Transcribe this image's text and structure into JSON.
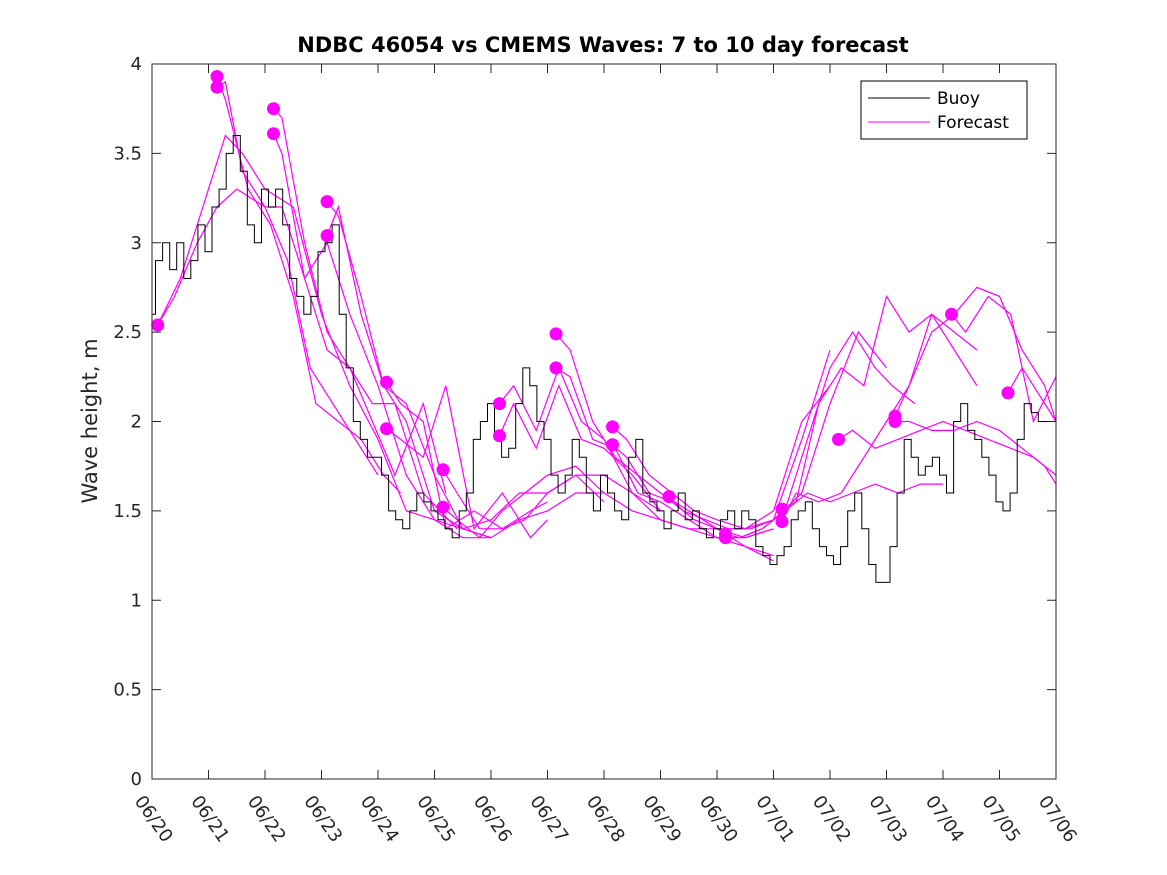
{
  "chart_data": {
    "type": "line",
    "title": "NDBC 46054 vs CMEMS Waves: 7 to 10 day forecast",
    "ylabel": "Wave height, m",
    "xlabel": "",
    "x_ticks": [
      "06/20",
      "06/21",
      "06/22",
      "06/23",
      "06/24",
      "06/25",
      "06/26",
      "06/27",
      "06/28",
      "06/29",
      "06/30",
      "07/01",
      "07/02",
      "07/03",
      "07/04",
      "07/05",
      "07/06"
    ],
    "y_ticks": [
      "0",
      "0.5",
      "1",
      "1.5",
      "2",
      "2.5",
      "3",
      "3.5",
      "4"
    ],
    "xlim": [
      0,
      16
    ],
    "ylim": [
      0,
      4
    ],
    "x_unit": "days since 06/20",
    "grid": false,
    "legend_position": "top-right",
    "colors": {
      "buoy": "#000000",
      "forecast": "#ff00ff"
    },
    "buoy": {
      "name": "Buoy",
      "x": [
        0,
        0.125,
        0.25,
        0.375,
        0.5,
        0.625,
        0.75,
        0.875,
        1,
        1.125,
        1.25,
        1.375,
        1.5,
        1.625,
        1.75,
        1.875,
        2,
        2.125,
        2.25,
        2.375,
        2.5,
        2.625,
        2.75,
        2.875,
        3,
        3.125,
        3.25,
        3.375,
        3.5,
        3.625,
        3.75,
        3.875,
        4,
        4.125,
        4.25,
        4.375,
        4.5,
        4.625,
        4.75,
        4.875,
        5,
        5.125,
        5.25,
        5.375,
        5.5,
        5.625,
        5.75,
        5.875,
        6,
        6.125,
        6.25,
        6.375,
        6.5,
        6.625,
        6.75,
        6.875,
        7,
        7.125,
        7.25,
        7.375,
        7.5,
        7.625,
        7.75,
        7.875,
        8,
        8.125,
        8.25,
        8.375,
        8.5,
        8.625,
        8.75,
        8.875,
        9,
        9.125,
        9.25,
        9.375,
        9.5,
        9.625,
        9.75,
        9.875,
        10,
        10.125,
        10.25,
        10.375,
        10.5,
        10.625,
        10.75,
        10.875,
        11,
        11.125,
        11.25,
        11.375,
        11.5,
        11.625,
        11.75,
        11.875,
        12,
        12.125,
        12.25,
        12.375,
        12.5,
        12.625,
        12.75,
        12.875,
        13,
        13.125,
        13.25,
        13.375,
        13.5,
        13.625,
        13.75,
        13.875,
        14,
        14.125,
        14.25,
        14.375,
        14.5,
        14.625,
        14.75,
        14.875,
        15,
        15.125,
        15.25,
        15.375,
        15.5,
        15.625,
        15.75,
        15.875,
        16
      ],
      "y": [
        2.6,
        2.9,
        3.0,
        2.85,
        3.0,
        2.8,
        2.9,
        3.1,
        2.95,
        3.2,
        3.3,
        3.5,
        3.6,
        3.4,
        3.1,
        3.0,
        3.3,
        3.2,
        3.3,
        3.1,
        2.8,
        2.7,
        2.6,
        2.7,
        2.95,
        3.0,
        3.1,
        2.6,
        2.3,
        2.0,
        1.9,
        1.8,
        1.8,
        1.7,
        1.5,
        1.45,
        1.4,
        1.5,
        1.6,
        1.55,
        1.5,
        1.45,
        1.4,
        1.35,
        1.5,
        1.6,
        1.9,
        2.0,
        2.1,
        1.9,
        1.8,
        1.85,
        2.1,
        2.3,
        2.2,
        2.0,
        1.9,
        1.7,
        1.6,
        1.7,
        1.9,
        1.8,
        1.6,
        1.5,
        1.7,
        1.6,
        1.5,
        1.45,
        1.8,
        1.9,
        1.6,
        1.55,
        1.5,
        1.4,
        1.5,
        1.6,
        1.45,
        1.5,
        1.4,
        1.35,
        1.4,
        1.45,
        1.5,
        1.4,
        1.5,
        1.45,
        1.3,
        1.25,
        1.2,
        1.25,
        1.3,
        1.45,
        1.5,
        1.55,
        1.4,
        1.3,
        1.25,
        1.2,
        1.3,
        1.5,
        1.6,
        1.4,
        1.2,
        1.1,
        1.1,
        1.3,
        1.6,
        1.9,
        1.8,
        1.7,
        1.75,
        1.8,
        1.7,
        1.6,
        2.0,
        2.1,
        1.95,
        1.9,
        1.8,
        1.7,
        1.55,
        1.5,
        1.6,
        1.9,
        2.1,
        2.05,
        2.0,
        2.0,
        2.0
      ]
    },
    "forecast": {
      "name": "Forecast",
      "series": [
        {
          "x": [
            0.1,
            0.4,
            0.8,
            1.15,
            1.5,
            2.0,
            2.3,
            2.7,
            3.1,
            3.5,
            4.0,
            4.5,
            5.0,
            5.5,
            6.0,
            6.5,
            7.0,
            7.5,
            8.0,
            8.5,
            9.0,
            9.5,
            10.0,
            10.5,
            11.0
          ],
          "y": [
            2.54,
            2.7,
            3.0,
            3.2,
            3.3,
            3.2,
            3.2,
            2.8,
            3.0,
            2.6,
            2.2,
            1.7,
            1.45,
            1.4,
            1.45,
            1.6,
            1.6,
            1.7,
            1.7,
            1.6,
            1.45,
            1.4,
            1.35,
            1.35,
            1.4
          ]
        },
        {
          "x": [
            0.1,
            0.5,
            1.0,
            1.3,
            1.6,
            2.0,
            2.5,
            3.0,
            3.5,
            4.0,
            4.5,
            5.0,
            5.5,
            6.0,
            6.5,
            7.0,
            7.5,
            8.0,
            8.5,
            9.0,
            9.5,
            10.0,
            10.5,
            11.0
          ],
          "y": [
            2.54,
            2.8,
            3.3,
            3.6,
            3.5,
            3.3,
            3.2,
            2.6,
            2.2,
            1.9,
            1.5,
            1.45,
            1.35,
            1.35,
            1.45,
            1.5,
            1.6,
            1.6,
            1.5,
            1.45,
            1.4,
            1.4,
            1.35,
            1.4
          ]
        },
        {
          "x": [
            1.15,
            1.3,
            1.6,
            2.0,
            2.4,
            2.8,
            3.2,
            3.6,
            4.0
          ],
          "y": [
            3.87,
            3.9,
            3.4,
            3.2,
            2.9,
            2.3,
            2.1,
            1.9,
            1.7
          ]
        },
        {
          "x": [
            1.15,
            1.3,
            1.7,
            2.1,
            2.5,
            2.9,
            3.3,
            3.7,
            4.1,
            4.4
          ],
          "y": [
            3.93,
            3.8,
            3.3,
            3.1,
            2.7,
            2.1,
            2.0,
            1.9,
            1.7,
            1.6
          ]
        },
        {
          "x": [
            2.15,
            2.3,
            2.7,
            3.1,
            3.5,
            3.9,
            4.3,
            4.8,
            5.2
          ],
          "y": [
            3.61,
            3.5,
            2.8,
            2.4,
            2.3,
            2.0,
            1.7,
            2.1,
            1.6
          ]
        },
        {
          "x": [
            2.15,
            2.3,
            2.7,
            3.1,
            3.5,
            3.9,
            4.3,
            4.8,
            5.4
          ],
          "y": [
            3.75,
            3.7,
            3.0,
            2.5,
            2.3,
            2.1,
            2.1,
            1.6,
            1.4
          ]
        },
        {
          "x": [
            3.1,
            3.3,
            3.7,
            4.1,
            4.5,
            5.0,
            5.5,
            6.0
          ],
          "y": [
            3.23,
            3.15,
            2.7,
            2.2,
            2.1,
            1.7,
            1.4,
            1.35
          ]
        },
        {
          "x": [
            3.1,
            3.3,
            3.7,
            4.1,
            4.5,
            5.0,
            5.5,
            6.0
          ],
          "y": [
            3.04,
            3.2,
            2.6,
            2.2,
            2.0,
            1.5,
            1.4,
            1.35
          ]
        },
        {
          "x": [
            4.15,
            4.4,
            4.8,
            5.2,
            5.7,
            6.2,
            6.7,
            7.0
          ],
          "y": [
            2.22,
            2.1,
            2.0,
            1.4,
            1.5,
            1.4,
            1.5,
            1.55
          ]
        },
        {
          "x": [
            4.15,
            4.4,
            4.8,
            5.2,
            5.7,
            6.2,
            6.7,
            7.0
          ],
          "y": [
            1.96,
            1.9,
            1.8,
            2.2,
            1.4,
            1.6,
            1.35,
            1.45
          ]
        },
        {
          "x": [
            5.15,
            5.4,
            5.8,
            6.2,
            6.6,
            7.0,
            7.5,
            8.0
          ],
          "y": [
            1.73,
            1.6,
            1.4,
            1.4,
            1.45,
            1.6,
            1.7,
            1.55
          ]
        },
        {
          "x": [
            5.15,
            5.4,
            5.8,
            6.2,
            6.6,
            7.0,
            7.5,
            8.0
          ],
          "y": [
            1.52,
            1.45,
            1.35,
            1.5,
            1.6,
            1.7,
            1.75,
            1.6
          ]
        },
        {
          "x": [
            6.15,
            6.4,
            6.8,
            7.2,
            7.6,
            8.0,
            8.5,
            9.0
          ],
          "y": [
            2.1,
            2.2,
            1.95,
            2.3,
            2.0,
            1.9,
            1.6,
            1.5
          ]
        },
        {
          "x": [
            6.15,
            6.4,
            6.8,
            7.2,
            7.6,
            8.0,
            8.5,
            9.0
          ],
          "y": [
            1.92,
            2.1,
            1.85,
            2.2,
            1.9,
            1.85,
            1.7,
            1.5
          ]
        },
        {
          "x": [
            7.15,
            7.4,
            7.8,
            8.2,
            8.6,
            9.0,
            9.5,
            10.0,
            10.5,
            11.0
          ],
          "y": [
            2.49,
            2.4,
            2.0,
            1.8,
            1.7,
            1.6,
            1.5,
            1.4,
            1.3,
            1.25
          ]
        },
        {
          "x": [
            7.15,
            7.4,
            7.8,
            8.2,
            8.6,
            9.0,
            9.5,
            10.0,
            10.5,
            11.0
          ],
          "y": [
            2.3,
            2.25,
            1.9,
            1.85,
            1.6,
            1.55,
            1.45,
            1.35,
            1.3,
            1.22
          ]
        },
        {
          "x": [
            8.15,
            8.4,
            8.8,
            9.2,
            9.6,
            10.0,
            10.5,
            11.0,
            11.5,
            12.0
          ],
          "y": [
            1.97,
            1.9,
            1.7,
            1.6,
            1.5,
            1.45,
            1.4,
            1.5,
            2.0,
            2.2
          ]
        },
        {
          "x": [
            8.15,
            8.4,
            8.8,
            9.2,
            9.6,
            10.0,
            10.5,
            11.0,
            11.5,
            12.0
          ],
          "y": [
            1.87,
            1.8,
            1.6,
            1.55,
            1.45,
            1.4,
            1.4,
            1.45,
            1.9,
            2.4
          ]
        },
        {
          "x": [
            9.15,
            9.4,
            9.8,
            10.2,
            10.6,
            11.0,
            11.5,
            12.0,
            12.5,
            13.0
          ],
          "y": [
            1.58,
            1.5,
            1.45,
            1.4,
            1.4,
            1.45,
            1.6,
            2.1,
            2.5,
            2.3
          ]
        },
        {
          "x": [
            10.15,
            10.4,
            10.8,
            11.2,
            11.6,
            12.0,
            12.4,
            12.8,
            13.1,
            13.5
          ],
          "y": [
            1.37,
            1.35,
            1.4,
            1.5,
            1.9,
            2.3,
            2.5,
            2.3,
            2.2,
            2.1
          ]
        },
        {
          "x": [
            10.15,
            10.4,
            10.8,
            11.2,
            11.6,
            12.0,
            12.4,
            12.8,
            13.2,
            13.6,
            14.0
          ],
          "y": [
            1.35,
            1.35,
            1.4,
            1.5,
            1.6,
            1.55,
            1.6,
            1.65,
            1.6,
            1.65,
            1.65
          ]
        },
        {
          "x": [
            11.15,
            11.4,
            11.8,
            12.2,
            12.6,
            13.0,
            13.4,
            13.8,
            14.2,
            14.6
          ],
          "y": [
            1.51,
            1.55,
            2.1,
            2.3,
            2.2,
            2.7,
            2.5,
            2.6,
            2.4,
            2.2
          ]
        },
        {
          "x": [
            11.15,
            11.4,
            11.8,
            12.2,
            12.6,
            13.0,
            13.4,
            13.8,
            14.2,
            14.6
          ],
          "y": [
            1.44,
            1.6,
            1.55,
            1.6,
            1.8,
            2.0,
            2.2,
            2.6,
            2.5,
            2.4
          ]
        },
        {
          "x": [
            12.15,
            12.4,
            12.8,
            13.2,
            13.6,
            14.0,
            14.4,
            14.8,
            15.2,
            15.6,
            16.0
          ],
          "y": [
            1.9,
            1.95,
            1.85,
            1.9,
            1.95,
            2.0,
            1.95,
            1.9,
            1.85,
            1.8,
            1.7
          ]
        },
        {
          "x": [
            13.15,
            13.4,
            13.8,
            14.2,
            14.6,
            15.0,
            15.4,
            15.8,
            16.0
          ],
          "y": [
            2.03,
            2.2,
            2.5,
            2.6,
            2.75,
            2.7,
            2.4,
            2.2,
            2.0
          ]
        },
        {
          "x": [
            13.15,
            13.4,
            13.8,
            14.2,
            14.6,
            15.0,
            15.4,
            15.8,
            16.0
          ],
          "y": [
            2.0,
            2.0,
            1.95,
            1.95,
            2.0,
            1.95,
            1.85,
            1.75,
            1.65
          ]
        },
        {
          "x": [
            14.15,
            14.4,
            14.8,
            15.2,
            15.6,
            16.0
          ],
          "y": [
            2.6,
            2.5,
            2.7,
            2.6,
            2.0,
            2.25
          ]
        },
        {
          "x": [
            15.15,
            15.4,
            15.8,
            16.0
          ],
          "y": [
            2.16,
            2.3,
            2.1,
            2.0
          ]
        }
      ],
      "markers": [
        {
          "x": 0.1,
          "y": 2.54
        },
        {
          "x": 1.15,
          "y": 3.87
        },
        {
          "x": 1.15,
          "y": 3.93
        },
        {
          "x": 2.15,
          "y": 3.61
        },
        {
          "x": 2.15,
          "y": 3.75
        },
        {
          "x": 3.1,
          "y": 3.23
        },
        {
          "x": 3.1,
          "y": 3.04
        },
        {
          "x": 4.15,
          "y": 2.22
        },
        {
          "x": 4.15,
          "y": 1.96
        },
        {
          "x": 5.15,
          "y": 1.73
        },
        {
          "x": 5.15,
          "y": 1.52
        },
        {
          "x": 6.15,
          "y": 2.1
        },
        {
          "x": 6.15,
          "y": 1.92
        },
        {
          "x": 7.15,
          "y": 2.49
        },
        {
          "x": 7.15,
          "y": 2.3
        },
        {
          "x": 8.15,
          "y": 1.97
        },
        {
          "x": 8.15,
          "y": 1.87
        },
        {
          "x": 9.15,
          "y": 1.58
        },
        {
          "x": 10.15,
          "y": 1.37
        },
        {
          "x": 10.15,
          "y": 1.35
        },
        {
          "x": 11.15,
          "y": 1.51
        },
        {
          "x": 11.15,
          "y": 1.44
        },
        {
          "x": 12.15,
          "y": 1.9
        },
        {
          "x": 13.15,
          "y": 2.03
        },
        {
          "x": 13.15,
          "y": 2.0
        },
        {
          "x": 14.15,
          "y": 2.6
        },
        {
          "x": 15.15,
          "y": 2.16
        }
      ]
    }
  }
}
